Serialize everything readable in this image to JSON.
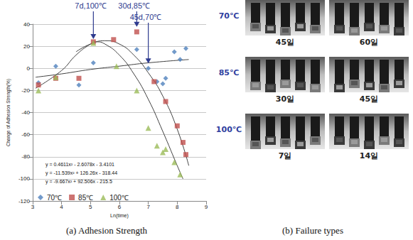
{
  "chart_data": {
    "type": "scatter",
    "xlabel": "Ln(time)",
    "ylabel": "Change of Adhesion Strength(%)",
    "xlim": [
      3,
      9
    ],
    "xticks": [
      3,
      4,
      5,
      6,
      7,
      8,
      9
    ],
    "ylim": [
      -120,
      40
    ],
    "yticks": [
      -120,
      -100,
      -80,
      -60,
      -40,
      -20,
      0,
      20,
      40
    ],
    "grid": true,
    "legend": "bottom-left",
    "series": [
      {
        "name": "70℃",
        "color": "#4f81bd",
        "marker": "diamond",
        "x": [
          3.2,
          3.8,
          4.6,
          5.1,
          6.6,
          7.0,
          7.3,
          7.5,
          7.6,
          7.9,
          8.1,
          8.3
        ],
        "values": [
          -13,
          2,
          -15,
          5,
          17,
          0,
          -12,
          -14,
          -9,
          15,
          8,
          18
        ]
      },
      {
        "name": "85℃",
        "color": "#c0504d",
        "marker": "square",
        "x": [
          3.2,
          3.8,
          4.6,
          5.1,
          5.8,
          6.6,
          7.2,
          7.6,
          8.0,
          8.2,
          8.3
        ],
        "values": [
          -15,
          -9,
          -9,
          24,
          26,
          33,
          -12,
          -30,
          -52,
          -67,
          -78
        ]
      },
      {
        "name": "100℃",
        "color": "#9bbb59",
        "marker": "triangle",
        "x": [
          3.2,
          3.8,
          5.1,
          5.9,
          6.6,
          7.0,
          7.3,
          7.5,
          7.6,
          7.9,
          8.1
        ],
        "values": [
          -20,
          -8,
          23,
          2,
          -20,
          -54,
          -70,
          -76,
          -73,
          -85,
          -96
        ]
      }
    ],
    "trendlines": [
      {
        "type": "line",
        "color": "#404040",
        "x": [
          3.1,
          4.0,
          5.0,
          6.0,
          7.0,
          8.4
        ],
        "values": [
          -8,
          -5,
          -1,
          2,
          5,
          8
        ]
      },
      {
        "type": "line",
        "color": "#404040",
        "x": [
          4.5,
          5.0,
          5.5,
          6.0,
          6.5,
          7.0,
          7.5,
          8.0,
          8.4
        ],
        "values": [
          15,
          22,
          25,
          22,
          12,
          -4,
          -25,
          -55,
          -88
        ]
      },
      {
        "type": "line",
        "color": "#404040",
        "x": [
          3.1,
          4.0,
          4.5,
          5.0,
          5.2,
          5.5,
          6.0,
          6.5,
          7.0,
          7.5,
          8.0,
          8.2
        ],
        "values": [
          -18,
          -2,
          12,
          22,
          24,
          22,
          12,
          -5,
          -28,
          -57,
          -88,
          -100
        ]
      }
    ],
    "annotations": [
      {
        "text": "7d,100℃",
        "x": 5.1,
        "y": 24
      },
      {
        "text": "30d,85℃",
        "x": 6.6,
        "y": 35
      },
      {
        "text": "45d,70℃",
        "x": 7.0,
        "y": 2
      }
    ],
    "equations": [
      "y = 0.4611x² - 2.6078x - 3.4101",
      "y = -11.539x² + 126.26x - 318.44",
      "y = -9.667x² + 92.506x - 215.5"
    ]
  },
  "captions": [
    "(a) Adhesion Strength",
    "(b) Failure types"
  ],
  "failure_types": {
    "rows": [
      {
        "temperature": "70℃",
        "photos": [
          "45일",
          "60일"
        ]
      },
      {
        "temperature": "85℃",
        "photos": [
          "30일",
          "45일"
        ]
      },
      {
        "temperature": "100℃",
        "photos": [
          "7일",
          "14일"
        ]
      }
    ]
  }
}
